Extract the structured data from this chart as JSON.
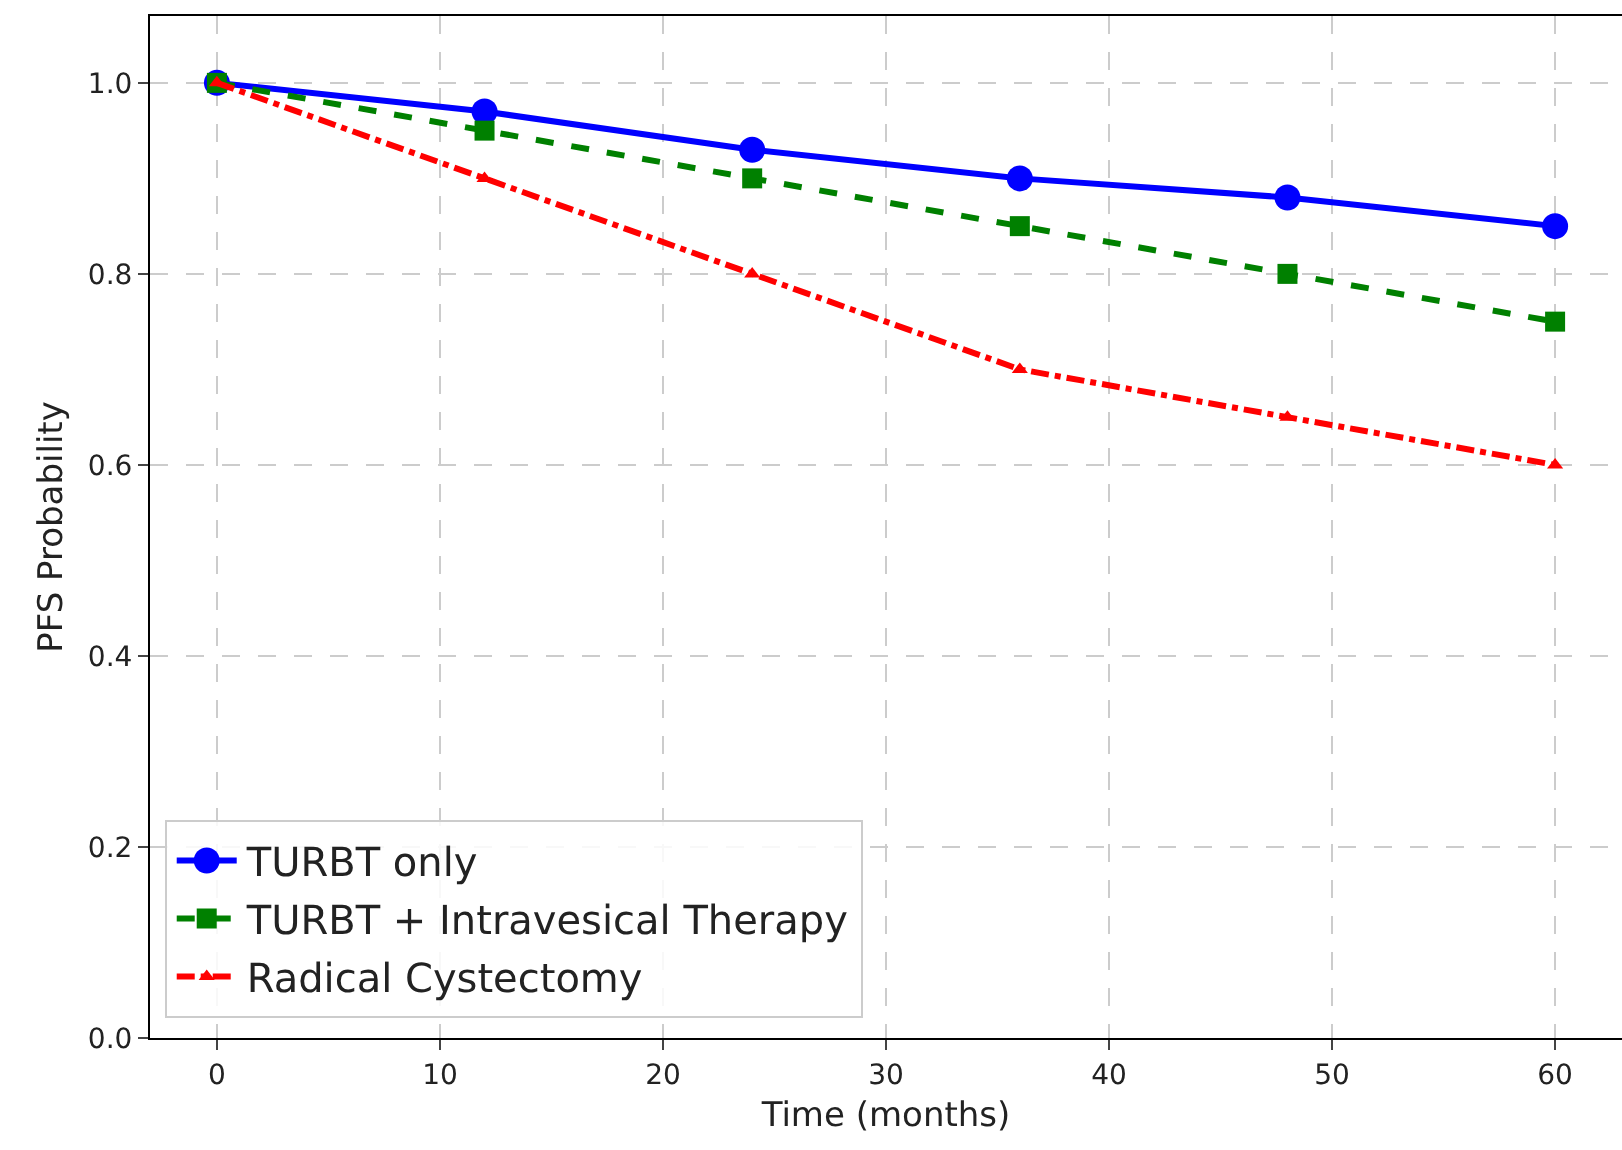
{
  "chart_data": {
    "type": "line",
    "xlabel": "Time (months)",
    "ylabel": "PFS Probability",
    "x": [
      0,
      12,
      24,
      36,
      48,
      60
    ],
    "series": [
      {
        "name": "TURBT only",
        "color": "#0000ff",
        "values": [
          1.0,
          0.97,
          0.93,
          0.9,
          0.88,
          0.85
        ],
        "marker": "circle",
        "line_style": "solid"
      },
      {
        "name": "TURBT + Intravesical Therapy",
        "color": "#008000",
        "values": [
          1.0,
          0.95,
          0.9,
          0.85,
          0.8,
          0.75
        ],
        "marker": "square",
        "line_style": "dashed"
      },
      {
        "name": "Radical Cystectomy",
        "color": "#ff0000",
        "values": [
          1.0,
          0.9,
          0.8,
          0.7,
          0.65,
          0.6
        ],
        "marker": "triangle",
        "line_style": "dashdot"
      }
    ],
    "xlim": [
      -3,
      63
    ],
    "ylim": [
      0,
      1.07
    ],
    "xticks": [
      0,
      10,
      20,
      30,
      40,
      50,
      60
    ],
    "yticks": [
      {
        "value": 0,
        "label": "0.0"
      },
      {
        "value": 0.2,
        "label": "0.2"
      },
      {
        "value": 0.4,
        "label": "0.4"
      },
      {
        "value": 0.6,
        "label": "0.6"
      },
      {
        "value": 0.8,
        "label": "0.8"
      },
      {
        "value": 1.0,
        "label": "1.0"
      }
    ],
    "grid": true,
    "legend": "bottom left"
  }
}
